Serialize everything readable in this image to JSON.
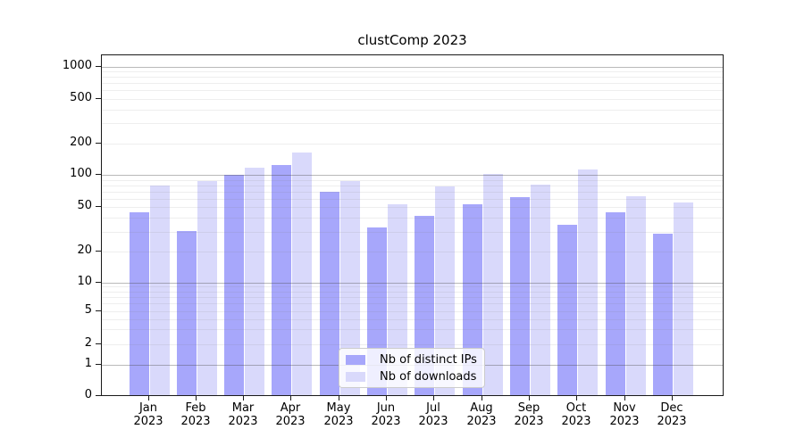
{
  "chart_data": {
    "type": "bar",
    "title": "clustComp 2023",
    "categories": [
      "Jan 2023",
      "Feb 2023",
      "Mar 2023",
      "Apr 2023",
      "May 2023",
      "Jun 2023",
      "Jul 2023",
      "Aug 2023",
      "Sep 2023",
      "Oct 2023",
      "Nov 2023",
      "Dec 2023"
    ],
    "series": [
      {
        "name": "Nb of distinct IPs",
        "color": "#a7a7fb",
        "values": [
          44,
          30,
          97,
          120,
          68,
          32,
          41,
          52,
          60,
          34,
          44,
          28
        ]
      },
      {
        "name": "Nb of downloads",
        "color": "#d9d9fb",
        "values": [
          77,
          85,
          115,
          160,
          85,
          52,
          76,
          100,
          79,
          110,
          62,
          54
        ]
      }
    ],
    "yscale": "symlog",
    "ytick_labels": [
      "0",
      "1",
      "2",
      "5",
      "10",
      "20",
      "50",
      "100",
      "200",
      "500",
      "1000"
    ],
    "ytick_values": [
      0,
      1,
      2,
      5,
      10,
      20,
      50,
      100,
      200,
      500,
      1000
    ],
    "ylim": [
      0,
      1300
    ],
    "xlabel": "",
    "ylabel": "",
    "grid": true,
    "legend_position": "lower center"
  }
}
